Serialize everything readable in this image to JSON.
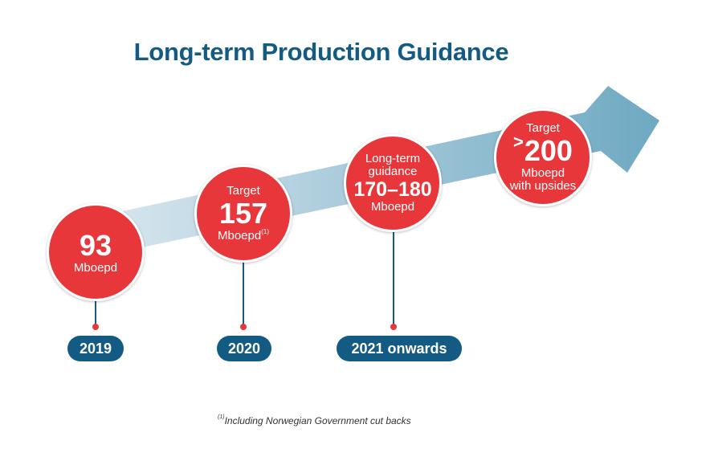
{
  "title": "Long-term Production Guidance",
  "colors": {
    "title": "#135b82",
    "circle": "#e8373b",
    "pill": "#135b82",
    "arrow_start": "#dbe8f0",
    "arrow_end": "#6ea9c2"
  },
  "milestones": [
    {
      "top": "",
      "value": "93",
      "unit": "Mboepd",
      "footnote_mark": "",
      "bottom": "",
      "year": "2019"
    },
    {
      "top": "Target",
      "value": "157",
      "unit": "Mboepd",
      "footnote_mark": "(1)",
      "bottom": "",
      "year": "2020"
    },
    {
      "top": "Long-term guidance",
      "value": "170–180",
      "unit": "Mboepd",
      "footnote_mark": "",
      "bottom": "",
      "year": "2021 onwards"
    },
    {
      "top": "Target",
      "prefix": ">",
      "value": "200",
      "unit": "Mboepd",
      "footnote_mark": "",
      "bottom": "with upsides",
      "year": ""
    }
  ],
  "footnote": {
    "mark": "(1)",
    "text": "Including Norwegian Government cut backs"
  }
}
